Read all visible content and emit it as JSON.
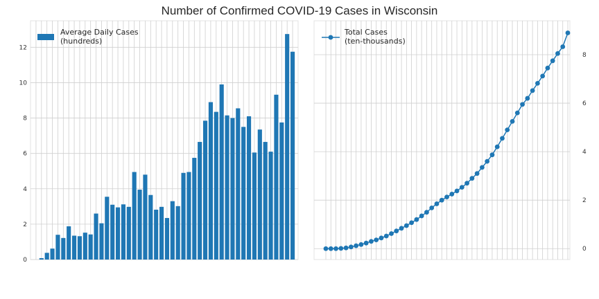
{
  "title": "Number of Confirmed COVID-19 Cases in Wisconsin",
  "colors": {
    "primary": "#1f77b4",
    "grid": "#cfcfcf",
    "frame": "#e3e3e3"
  },
  "chart_data": [
    {
      "type": "bar",
      "legend": [
        "Average Daily Cases",
        "(hundreds)"
      ],
      "legend_position": "top-left",
      "grid": true,
      "ylim": [
        0,
        13.5
      ],
      "yticks": [
        0,
        2,
        4,
        6,
        8,
        10,
        12
      ],
      "values": [
        0.0,
        0.08,
        0.38,
        0.62,
        1.4,
        1.22,
        1.88,
        1.35,
        1.32,
        1.52,
        1.42,
        2.6,
        2.05,
        3.55,
        3.1,
        2.95,
        3.12,
        2.98,
        4.95,
        3.95,
        4.8,
        3.65,
        2.82,
        2.98,
        2.35,
        3.3,
        3.02,
        4.9,
        4.95,
        5.75,
        6.65,
        7.85,
        8.9,
        8.35,
        9.9,
        8.15,
        8.0,
        8.55,
        7.5,
        8.1,
        6.05,
        7.35,
        6.65,
        6.1,
        9.32,
        7.75,
        12.75,
        11.75
      ]
    },
    {
      "type": "line",
      "legend": [
        "Total Cases",
        "(ten-thousands)"
      ],
      "legend_position": "top-left",
      "grid": true,
      "y_axis_side": "right",
      "ylim": [
        -0.45,
        9.4
      ],
      "yticks": [
        0,
        2,
        4,
        6,
        8
      ],
      "values": [
        0.0,
        0.0,
        0.0,
        0.01,
        0.03,
        0.07,
        0.12,
        0.17,
        0.23,
        0.3,
        0.36,
        0.44,
        0.52,
        0.62,
        0.73,
        0.84,
        0.95,
        1.07,
        1.2,
        1.35,
        1.5,
        1.68,
        1.85,
        2.0,
        2.13,
        2.25,
        2.38,
        2.53,
        2.7,
        2.9,
        3.1,
        3.35,
        3.6,
        3.87,
        4.2,
        4.55,
        4.9,
        5.25,
        5.6,
        5.95,
        6.2,
        6.52,
        6.82,
        7.12,
        7.45,
        7.75,
        8.05,
        8.33,
        8.9
      ]
    }
  ]
}
